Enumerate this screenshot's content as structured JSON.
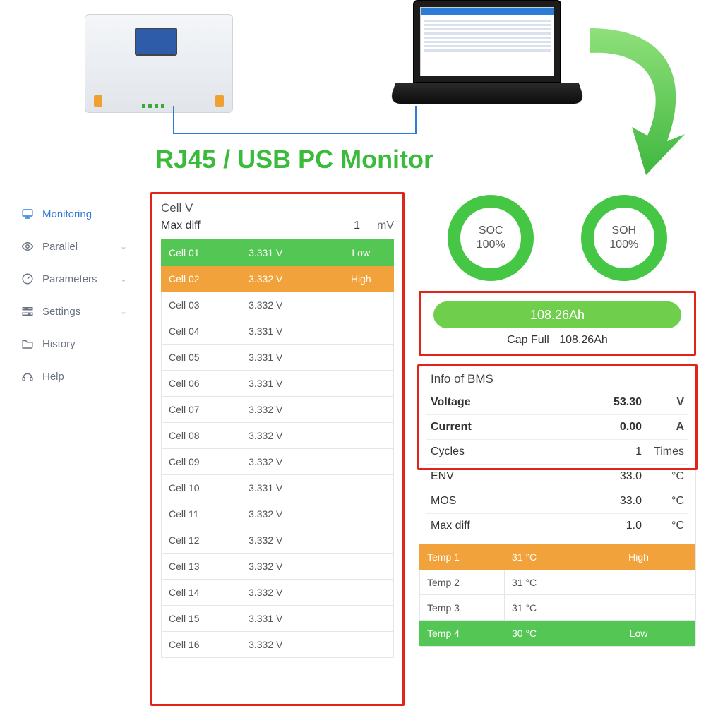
{
  "hero": {
    "title": "RJ45 / USB PC Monitor",
    "title_color": "#3bbb3b",
    "arrow_color": "#54c84a",
    "cable_color": "#2d7bd8"
  },
  "colors": {
    "highlight_border": "#e2231a",
    "row_low": "#53c653",
    "row_high": "#f2a23a",
    "ring": "#45c745",
    "cap_bar": "#6fcf4d",
    "active_nav": "#2d7bd8"
  },
  "sidebar": {
    "items": [
      {
        "icon": "monitor",
        "label": "Monitoring",
        "active": true,
        "expandable": false
      },
      {
        "icon": "eye",
        "label": "Parallel",
        "active": false,
        "expandable": true
      },
      {
        "icon": "gauge",
        "label": "Parameters",
        "active": false,
        "expandable": true
      },
      {
        "icon": "settings",
        "label": "Settings",
        "active": false,
        "expandable": true
      },
      {
        "icon": "folder",
        "label": "History",
        "active": false,
        "expandable": false
      },
      {
        "icon": "help",
        "label": "Help",
        "active": false,
        "expandable": false
      }
    ]
  },
  "cellv": {
    "title": "Cell V",
    "maxdiff_label": "Max diff",
    "maxdiff_value": "1",
    "maxdiff_unit": "mV",
    "rows": [
      {
        "name": "Cell 01",
        "v": "3.331 V",
        "tag": "Low",
        "cls": "low"
      },
      {
        "name": "Cell 02",
        "v": "3.332 V",
        "tag": "High",
        "cls": "high"
      },
      {
        "name": "Cell 03",
        "v": "3.332 V",
        "tag": "",
        "cls": ""
      },
      {
        "name": "Cell 04",
        "v": "3.331 V",
        "tag": "",
        "cls": ""
      },
      {
        "name": "Cell 05",
        "v": "3.331 V",
        "tag": "",
        "cls": ""
      },
      {
        "name": "Cell 06",
        "v": "3.331 V",
        "tag": "",
        "cls": ""
      },
      {
        "name": "Cell 07",
        "v": "3.332 V",
        "tag": "",
        "cls": ""
      },
      {
        "name": "Cell 08",
        "v": "3.332 V",
        "tag": "",
        "cls": ""
      },
      {
        "name": "Cell 09",
        "v": "3.332 V",
        "tag": "",
        "cls": ""
      },
      {
        "name": "Cell 10",
        "v": "3.331 V",
        "tag": "",
        "cls": ""
      },
      {
        "name": "Cell 11",
        "v": "3.332 V",
        "tag": "",
        "cls": ""
      },
      {
        "name": "Cell 12",
        "v": "3.332 V",
        "tag": "",
        "cls": ""
      },
      {
        "name": "Cell 13",
        "v": "3.332 V",
        "tag": "",
        "cls": ""
      },
      {
        "name": "Cell 14",
        "v": "3.332 V",
        "tag": "",
        "cls": ""
      },
      {
        "name": "Cell 15",
        "v": "3.331 V",
        "tag": "",
        "cls": ""
      },
      {
        "name": "Cell 16",
        "v": "3.332 V",
        "tag": "",
        "cls": ""
      }
    ]
  },
  "gauges": {
    "soc": {
      "label": "SOC",
      "value": "100%"
    },
    "soh": {
      "label": "SOH",
      "value": "100%"
    }
  },
  "capacity": {
    "bar_text": "108.26Ah",
    "full_label": "Cap Full",
    "full_value": "108.26Ah"
  },
  "bms": {
    "title": "Info of BMS",
    "rows": [
      {
        "label": "Voltage",
        "value": "53.30",
        "unit": "V",
        "bold": true
      },
      {
        "label": "Current",
        "value": "0.00",
        "unit": "A",
        "bold": true
      },
      {
        "label": "Cycles",
        "value": "1",
        "unit": "Times",
        "bold": false
      },
      {
        "label": "ENV",
        "value": "33.0",
        "unit": "°C",
        "bold": false
      },
      {
        "label": "MOS",
        "value": "33.0",
        "unit": "°C",
        "bold": false
      },
      {
        "label": "Max diff",
        "value": "1.0",
        "unit": "°C",
        "bold": false
      }
    ],
    "temps": [
      {
        "name": "Temp 1",
        "v": "31 °C",
        "tag": "High",
        "cls": "high"
      },
      {
        "name": "Temp 2",
        "v": "31 °C",
        "tag": "",
        "cls": ""
      },
      {
        "name": "Temp 3",
        "v": "31 °C",
        "tag": "",
        "cls": ""
      },
      {
        "name": "Temp 4",
        "v": "30 °C",
        "tag": "Low",
        "cls": "low"
      }
    ]
  }
}
